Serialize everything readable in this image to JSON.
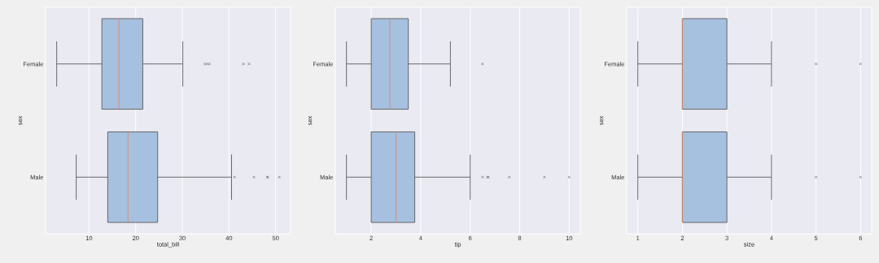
{
  "chart_data": [
    {
      "type": "box",
      "orientation": "horizontal",
      "xlabel": "total_bill",
      "ylabel": "sex",
      "categories": [
        "Female",
        "Male"
      ],
      "xlim": [
        0.68,
        53.2
      ],
      "xticks": [
        10,
        20,
        30,
        40,
        50
      ],
      "grid": "x",
      "marker": "cross",
      "series": [
        {
          "color": "#a6c0df",
          "boxes": [
            {
              "low": 3.07,
              "q1": 12.75,
              "median": 16.4,
              "q3": 21.52,
              "high": 30.1,
              "outliers": [
                34.8,
                35.3,
                35.8,
                43.1,
                44.3
              ]
            },
            {
              "low": 7.25,
              "q1": 14.0,
              "median": 18.35,
              "q3": 24.71,
              "high": 40.55,
              "outliers": [
                41.2,
                45.35,
                48.2,
                48.3,
                50.8
              ]
            }
          ]
        }
      ]
    },
    {
      "type": "box",
      "orientation": "horizontal",
      "xlabel": "tip",
      "ylabel": "sex",
      "categories": [
        "Female",
        "Male"
      ],
      "xlim": [
        0.55,
        10.45
      ],
      "xticks": [
        2,
        4,
        6,
        8,
        10
      ],
      "grid": "x",
      "marker": "cross",
      "series": [
        {
          "color": "#a6c0df",
          "boxes": [
            {
              "low": 1.0,
              "q1": 2.0,
              "median": 2.75,
              "q3": 3.5,
              "high": 5.2,
              "outliers": [
                6.5
              ]
            },
            {
              "low": 1.0,
              "q1": 2.0,
              "median": 3.0,
              "q3": 3.76,
              "high": 6.0,
              "outliers": [
                6.5,
                6.7,
                6.73,
                7.58,
                9.0,
                10.0
              ]
            }
          ]
        }
      ]
    },
    {
      "type": "box",
      "orientation": "horizontal",
      "xlabel": "size",
      "ylabel": "sex",
      "categories": [
        "Female",
        "Male"
      ],
      "xlim": [
        0.75,
        6.25
      ],
      "xticks": [
        1,
        2,
        3,
        4,
        5,
        6
      ],
      "grid": "x",
      "marker": "cross",
      "series": [
        {
          "color": "#a6c0df",
          "boxes": [
            {
              "low": 1,
              "q1": 2,
              "median": 2,
              "q3": 3,
              "high": 4,
              "outliers": [
                5,
                6
              ]
            },
            {
              "low": 1,
              "q1": 2,
              "median": 2,
              "q3": 3,
              "high": 4,
              "outliers": [
                5,
                6
              ]
            }
          ]
        }
      ]
    }
  ]
}
